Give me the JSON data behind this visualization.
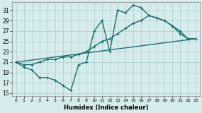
{
  "title": "",
  "xlabel": "Humidex (Indice chaleur)",
  "bg_color": "#d6ecec",
  "grid_color": "#aacccc",
  "line_color": "#1a6e6e",
  "xlim": [
    -0.5,
    23.5
  ],
  "ylim": [
    14.5,
    32.5
  ],
  "yticks": [
    15,
    17,
    19,
    21,
    23,
    25,
    27,
    29,
    31
  ],
  "xticks": [
    0,
    1,
    2,
    3,
    4,
    5,
    6,
    7,
    8,
    9,
    10,
    11,
    12,
    13,
    14,
    15,
    16,
    17,
    18,
    19,
    20,
    21,
    22,
    23
  ],
  "curve1_x": [
    0,
    1,
    2,
    3,
    4,
    5,
    6,
    7,
    8,
    9,
    10,
    11,
    12,
    13,
    14,
    15,
    16,
    17,
    18,
    19,
    20,
    21,
    22,
    23
  ],
  "curve1_y": [
    21,
    20,
    19.5,
    18,
    18,
    17.5,
    16.5,
    15.5,
    20.5,
    21,
    27,
    29,
    23,
    31,
    30.5,
    32,
    31.5,
    30,
    29.5,
    29,
    28,
    26.5,
    25.5,
    25.5
  ],
  "curve2_x": [
    0,
    1,
    2,
    3,
    4,
    5,
    6,
    7,
    8,
    9,
    10,
    11,
    12,
    13,
    14,
    15,
    16,
    17,
    18,
    19,
    20,
    21,
    22,
    23
  ],
  "curve2_y": [
    21,
    20.5,
    20.5,
    21,
    21.5,
    21.5,
    22,
    22,
    22.5,
    23,
    24,
    25,
    25.5,
    26.5,
    27.5,
    28.5,
    29,
    30,
    29.5,
    29,
    28,
    27,
    25.5,
    25.5
  ],
  "line3_x": [
    0,
    23
  ],
  "line3_y": [
    21,
    25.5
  ],
  "marker_size": 2.5,
  "line_width": 1.0
}
